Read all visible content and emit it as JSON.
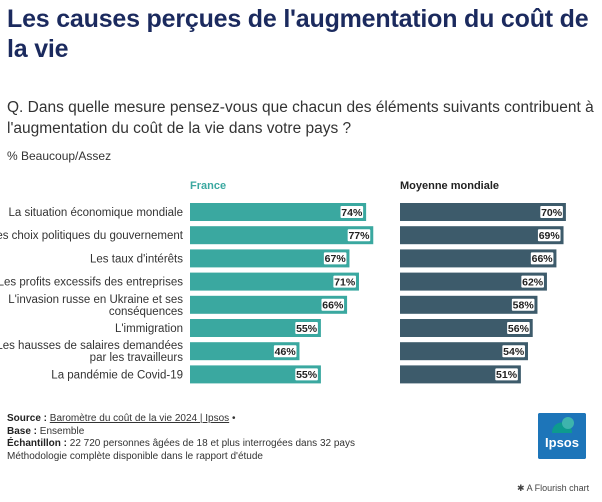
{
  "title": "Les causes perçues de l'augmentation du coût de la vie",
  "question": "Q. Dans quelle mesure pensez-vous que chacun des éléments suivants contribuent à l'augmentation du coût de la vie dans votre pays ?",
  "unit": "% Beaucoup/Assez",
  "colors": {
    "france": "#3aa8a0",
    "mondial": "#3d5b6b",
    "title": "#1b2a5e"
  },
  "chart_data": {
    "type": "bar",
    "orientation": "horizontal",
    "categories": [
      "La situation économique mondiale",
      "Les choix politiques du gouvernement",
      "Les taux d'intérêts",
      "Les profits excessifs des entreprises",
      "L'invasion russe en Ukraine et ses conséquences",
      "L'immigration",
      "Les hausses de salaires demandées par les travailleurs",
      "La pandémie de Covid-19"
    ],
    "category_lines": [
      [
        "La situation économique mondiale"
      ],
      [
        "Les choix politiques du gouvernement"
      ],
      [
        "Les taux d'intérêts"
      ],
      [
        "Les profits excessifs des entreprises"
      ],
      [
        "L'invasion russe en Ukraine et ses",
        "conséquences"
      ],
      [
        "L'immigration"
      ],
      [
        "Les hausses de salaires demandées",
        "par les travailleurs"
      ],
      [
        "La pandémie de Covid-19"
      ]
    ],
    "series": [
      {
        "name": "France",
        "values": [
          74,
          77,
          67,
          71,
          66,
          55,
          46,
          55
        ],
        "labels": [
          "74%",
          "77%",
          "67%",
          "71%",
          "66%",
          "55%",
          "46%",
          "55%"
        ]
      },
      {
        "name": "Moyenne mondiale",
        "values": [
          70,
          69,
          66,
          62,
          58,
          56,
          54,
          51
        ],
        "labels": [
          "70%",
          "69%",
          "66%",
          "62%",
          "58%",
          "56%",
          "54%",
          "51%"
        ]
      }
    ],
    "xlim": [
      0,
      100
    ]
  },
  "footer": {
    "source_label": "Source :",
    "source_text": "Baromètre du coût de la vie 2024 | Ipsos",
    "source_suffix": "•",
    "base_label": "Base :",
    "base_text": "Ensemble",
    "sample_label": "Échantillon :",
    "sample_text": "22 720 personnes âgées de 18 et plus interrogées dans 32 pays",
    "method_text": "Méthodologie complète disponible dans le rapport d'étude"
  },
  "logo_text": "Ipsos",
  "flourish_text": "A Flourish chart"
}
